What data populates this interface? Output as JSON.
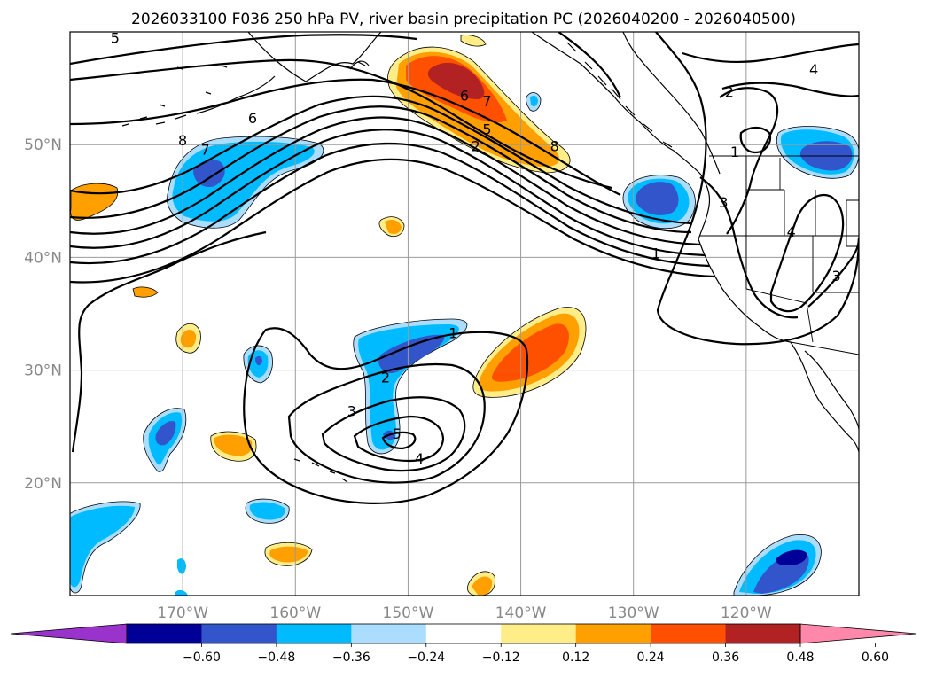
{
  "chart_data": {
    "type": "contour-map",
    "title": "2026033100 F036 250 hPa PV, river basin precipitation PC (2026040200 - 2026040500)",
    "lat_range": [
      10,
      60
    ],
    "lon_range": [
      -180,
      -110
    ],
    "lat_ticks": [
      {
        "value": 20,
        "label": "20°N"
      },
      {
        "value": 30,
        "label": "30°N"
      },
      {
        "value": 40,
        "label": "40°N"
      },
      {
        "value": 50,
        "label": "50°N"
      }
    ],
    "lon_ticks": [
      {
        "value": -170,
        "label": "170°W"
      },
      {
        "value": -160,
        "label": "160°W"
      },
      {
        "value": -150,
        "label": "150°W"
      },
      {
        "value": -140,
        "label": "140°W"
      },
      {
        "value": -130,
        "label": "130°W"
      },
      {
        "value": -120,
        "label": "120°W"
      }
    ],
    "colorbar": {
      "levels": [
        -0.72,
        -0.6,
        -0.48,
        -0.36,
        -0.24,
        -0.12,
        0.12,
        0.24,
        0.36,
        0.48,
        0.6,
        0.72
      ],
      "colors": [
        "#9933cc",
        "#000099",
        "#3355cc",
        "#00bbff",
        "#aaddff",
        "#ffffff",
        "#ffee88",
        "#ffa000",
        "#ff5000",
        "#b22222",
        "#ff88aa"
      ],
      "tick_labels": [
        "−0.60",
        "−0.48",
        "−0.36",
        "−0.24",
        "−0.12",
        "0.12",
        "0.24",
        "0.36",
        "0.48",
        "0.60"
      ],
      "extend": "both"
    },
    "pv_contour_labels": [
      {
        "text": "5",
        "lon": -176.0,
        "lat": 59.1
      },
      {
        "text": "6",
        "lon": -163.8,
        "lat": 52.0
      },
      {
        "text": "7",
        "lon": -168.0,
        "lat": 49.2
      },
      {
        "text": "8",
        "lon": -170.0,
        "lat": 50.0
      },
      {
        "text": "6",
        "lon": -145.0,
        "lat": 54.0
      },
      {
        "text": "7",
        "lon": -143.0,
        "lat": 53.5
      },
      {
        "text": "5",
        "lon": -143.0,
        "lat": 51.0
      },
      {
        "text": "2",
        "lon": -144.0,
        "lat": 49.5
      },
      {
        "text": "8",
        "lon": -137.0,
        "lat": 49.5
      },
      {
        "text": "1",
        "lon": -128.0,
        "lat": 40.0
      },
      {
        "text": "2",
        "lon": -121.5,
        "lat": 54.3
      },
      {
        "text": "4",
        "lon": -114.0,
        "lat": 56.3
      },
      {
        "text": "1",
        "lon": -121.0,
        "lat": 49.0
      },
      {
        "text": "3",
        "lon": -122.0,
        "lat": 44.5
      },
      {
        "text": "4",
        "lon": -116.0,
        "lat": 41.9
      },
      {
        "text": "3",
        "lon": -112.0,
        "lat": 38.0
      },
      {
        "text": "1",
        "lon": -146.0,
        "lat": 32.9
      },
      {
        "text": "2",
        "lon": -152.0,
        "lat": 29.0
      },
      {
        "text": "3",
        "lon": -155.0,
        "lat": 26.0
      },
      {
        "text": "5",
        "lon": -151.0,
        "lat": 24.0
      },
      {
        "text": "4",
        "lon": -149.0,
        "lat": 21.8
      }
    ]
  }
}
